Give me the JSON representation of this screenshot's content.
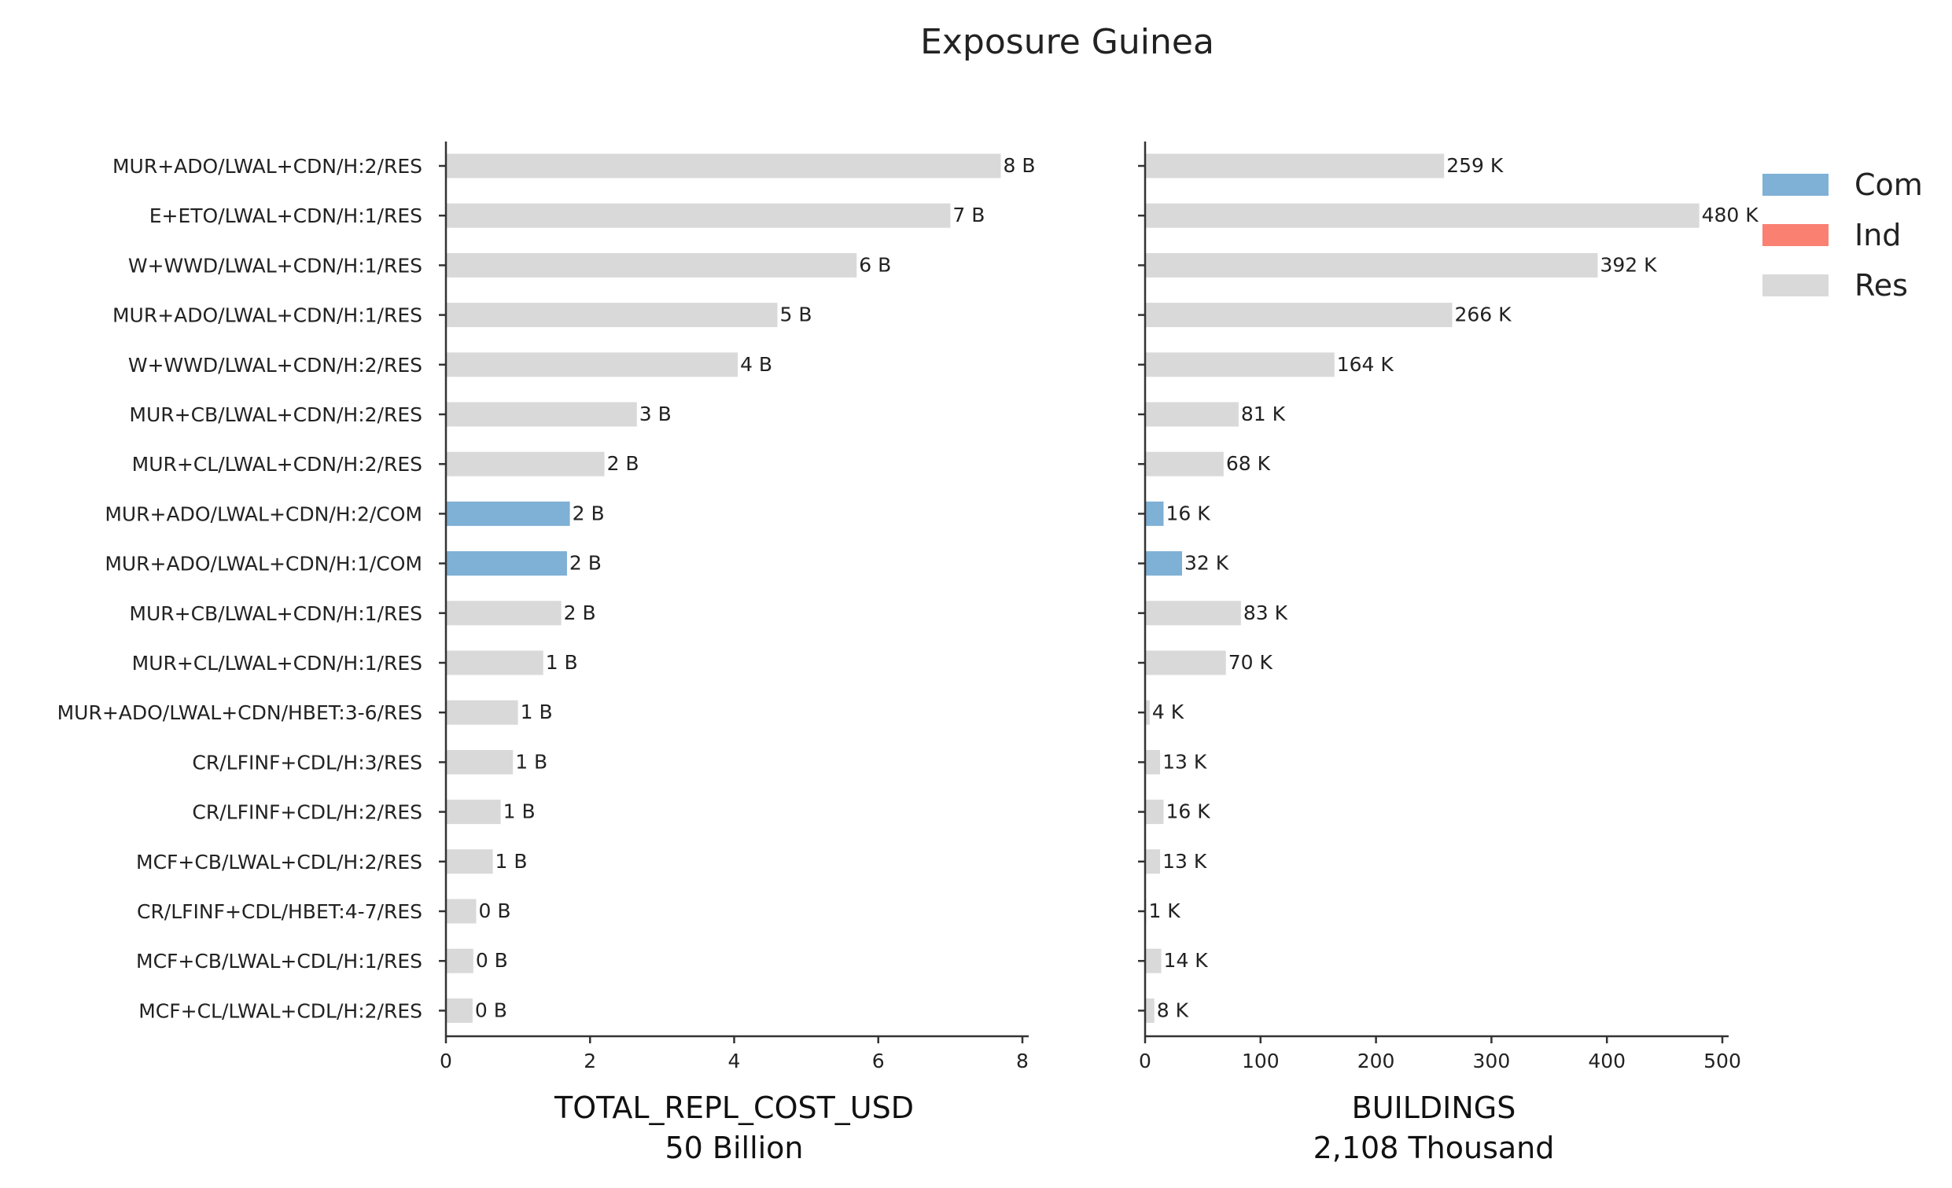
{
  "chart_data": {
    "type": "bar",
    "orientation": "horizontal",
    "title": "Exposure Guinea",
    "categories": [
      "MUR+ADO/LWAL+CDN/H:2/RES",
      "E+ETO/LWAL+CDN/H:1/RES",
      "W+WWD/LWAL+CDN/H:1/RES",
      "MUR+ADO/LWAL+CDN/H:1/RES",
      "W+WWD/LWAL+CDN/H:2/RES",
      "MUR+CB/LWAL+CDN/H:2/RES",
      "MUR+CL/LWAL+CDN/H:2/RES",
      "MUR+ADO/LWAL+CDN/H:2/COM",
      "MUR+ADO/LWAL+CDN/H:1/COM",
      "MUR+CB/LWAL+CDN/H:1/RES",
      "MUR+CL/LWAL+CDN/H:1/RES",
      "MUR+ADO/LWAL+CDN/HBET:3-6/RES",
      "CR/LFINF+CDL/H:3/RES",
      "CR/LFINF+CDL/H:2/RES",
      "MCF+CB/LWAL+CDL/H:2/RES",
      "CR/LFINF+CDL/HBET:4-7/RES",
      "MCF+CB/LWAL+CDL/H:1/RES",
      "MCF+CL/LWAL+CDL/H:2/RES"
    ],
    "occupancy": [
      "Res",
      "Res",
      "Res",
      "Res",
      "Res",
      "Res",
      "Res",
      "Com",
      "Com",
      "Res",
      "Res",
      "Res",
      "Res",
      "Res",
      "Res",
      "Res",
      "Res",
      "Res"
    ],
    "legend": {
      "placement": "top-right",
      "entries": [
        {
          "name": "Com",
          "color": "#7fb0d5"
        },
        {
          "name": "Ind",
          "color": "#fa8072"
        },
        {
          "name": "Res",
          "color": "#d9d9d9"
        }
      ]
    },
    "panels": [
      {
        "xlabel": "TOTAL_REPL_COST_USD",
        "xlabel_sub": "50 Billion",
        "xlim": [
          0,
          8
        ],
        "xticks": [
          0,
          2,
          4,
          6,
          8
        ],
        "xtick_labels": [
          "0",
          "2",
          "4",
          "6",
          "8"
        ],
        "values": [
          7.7,
          7.0,
          5.7,
          4.6,
          4.05,
          2.65,
          2.2,
          1.72,
          1.68,
          1.6,
          1.35,
          1.0,
          0.93,
          0.76,
          0.65,
          0.42,
          0.38,
          0.37
        ],
        "value_labels": [
          "8 B",
          "7 B",
          "6 B",
          "5 B",
          "4 B",
          "3 B",
          "2 B",
          "2 B",
          "2 B",
          "2 B",
          "1 B",
          "1 B",
          "1 B",
          "1 B",
          "1 B",
          "0 B",
          "0 B",
          "0 B"
        ]
      },
      {
        "xlabel": "BUILDINGS",
        "xlabel_sub": "2,108 Thousand",
        "xlim": [
          0,
          500
        ],
        "xticks": [
          0,
          100,
          200,
          300,
          400,
          500
        ],
        "xtick_labels": [
          "0",
          "100",
          "200",
          "300",
          "400",
          "500"
        ],
        "values": [
          259,
          480,
          392,
          266,
          164,
          81,
          68,
          16,
          32,
          83,
          70,
          4,
          13,
          16,
          13,
          1,
          14,
          8
        ],
        "value_labels": [
          "259 K",
          "480 K",
          "392 K",
          "266 K",
          "164 K",
          "81 K",
          "68 K",
          "16 K",
          "32 K",
          "83 K",
          "70 K",
          "4 K",
          "13 K",
          "16 K",
          "13 K",
          "1 K",
          "14 K",
          "8 K"
        ]
      }
    ]
  }
}
